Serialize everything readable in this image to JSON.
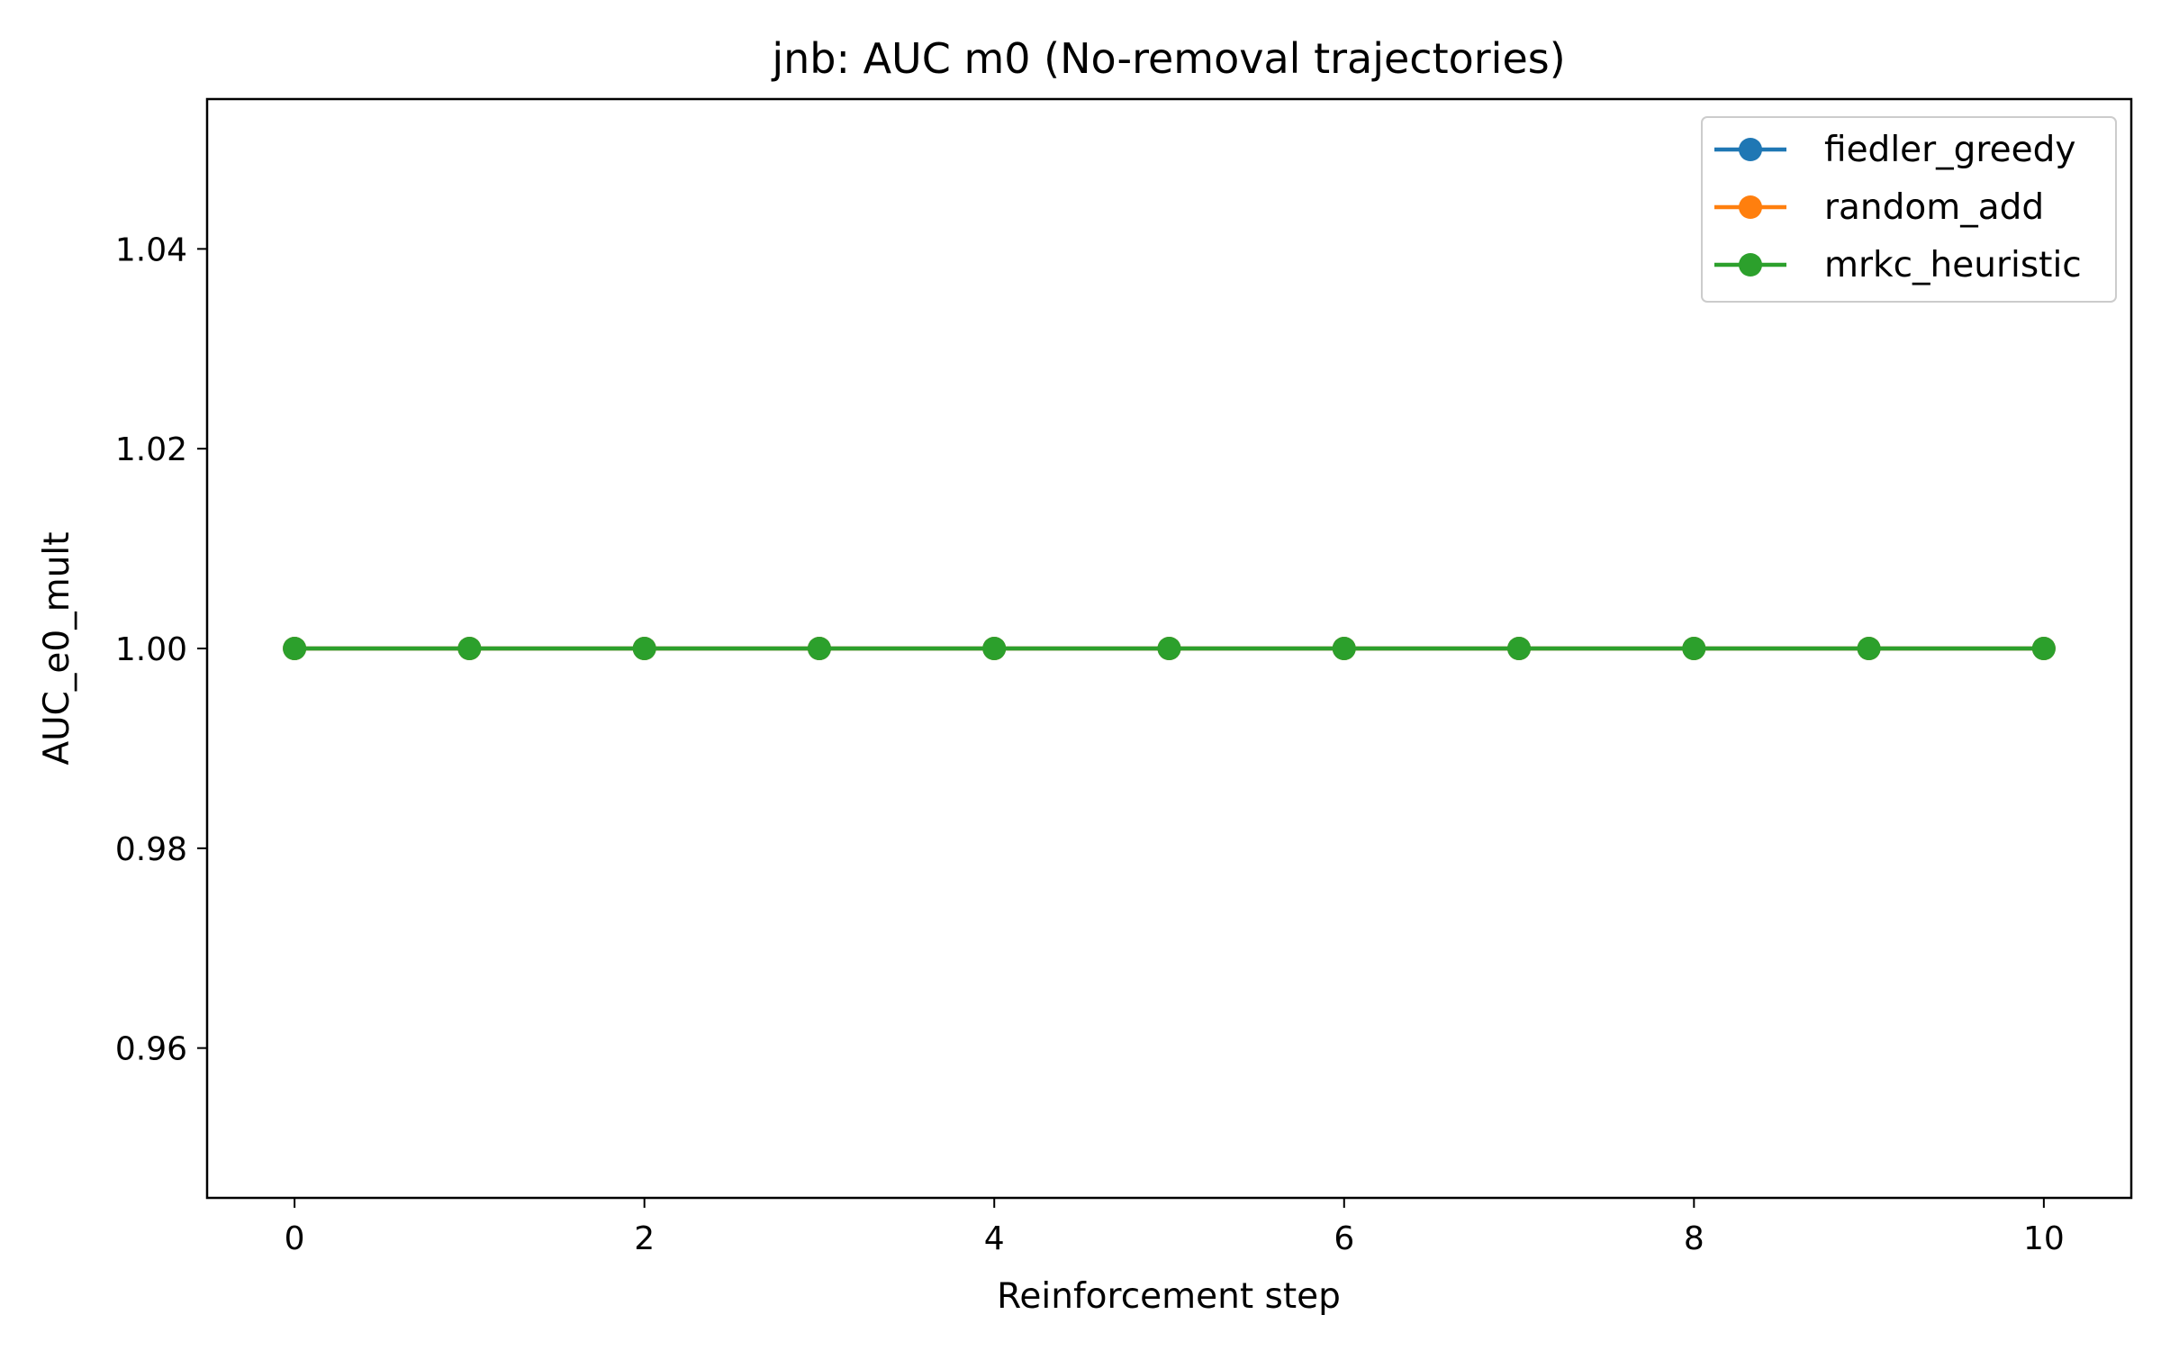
{
  "chart_data": {
    "type": "line",
    "title": "jnb: AUC m0 (No-removal trajectories)",
    "xlabel": "Reinforcement step",
    "ylabel": "AUC_e0_mult",
    "xlim": [
      -0.5,
      10.5
    ],
    "ylim": [
      0.945,
      1.055
    ],
    "xticks": [
      0,
      2,
      4,
      6,
      8,
      10
    ],
    "xtick_labels": [
      "0",
      "2",
      "4",
      "6",
      "8",
      "10"
    ],
    "yticks": [
      0.96,
      0.98,
      1.0,
      1.02,
      1.04
    ],
    "ytick_labels": [
      "0.96",
      "0.98",
      "1.00",
      "1.02",
      "1.04"
    ],
    "grid": false,
    "legend_position": "top-right",
    "x": [
      0,
      1,
      2,
      3,
      4,
      5,
      6,
      7,
      8,
      9,
      10
    ],
    "series": [
      {
        "name": "fiedler_greedy",
        "color": "#1f77b4",
        "marker": "circle",
        "values": [
          1.0,
          1.0,
          1.0,
          1.0,
          1.0,
          1.0,
          1.0,
          1.0,
          1.0,
          1.0,
          1.0
        ]
      },
      {
        "name": "random_add",
        "color": "#ff7f0e",
        "marker": "circle",
        "values": [
          1.0,
          1.0,
          1.0,
          1.0,
          1.0,
          1.0,
          1.0,
          1.0,
          1.0,
          1.0,
          1.0
        ]
      },
      {
        "name": "mrkc_heuristic",
        "color": "#2ca02c",
        "marker": "circle",
        "values": [
          1.0,
          1.0,
          1.0,
          1.0,
          1.0,
          1.0,
          1.0,
          1.0,
          1.0,
          1.0,
          1.0
        ]
      }
    ]
  }
}
